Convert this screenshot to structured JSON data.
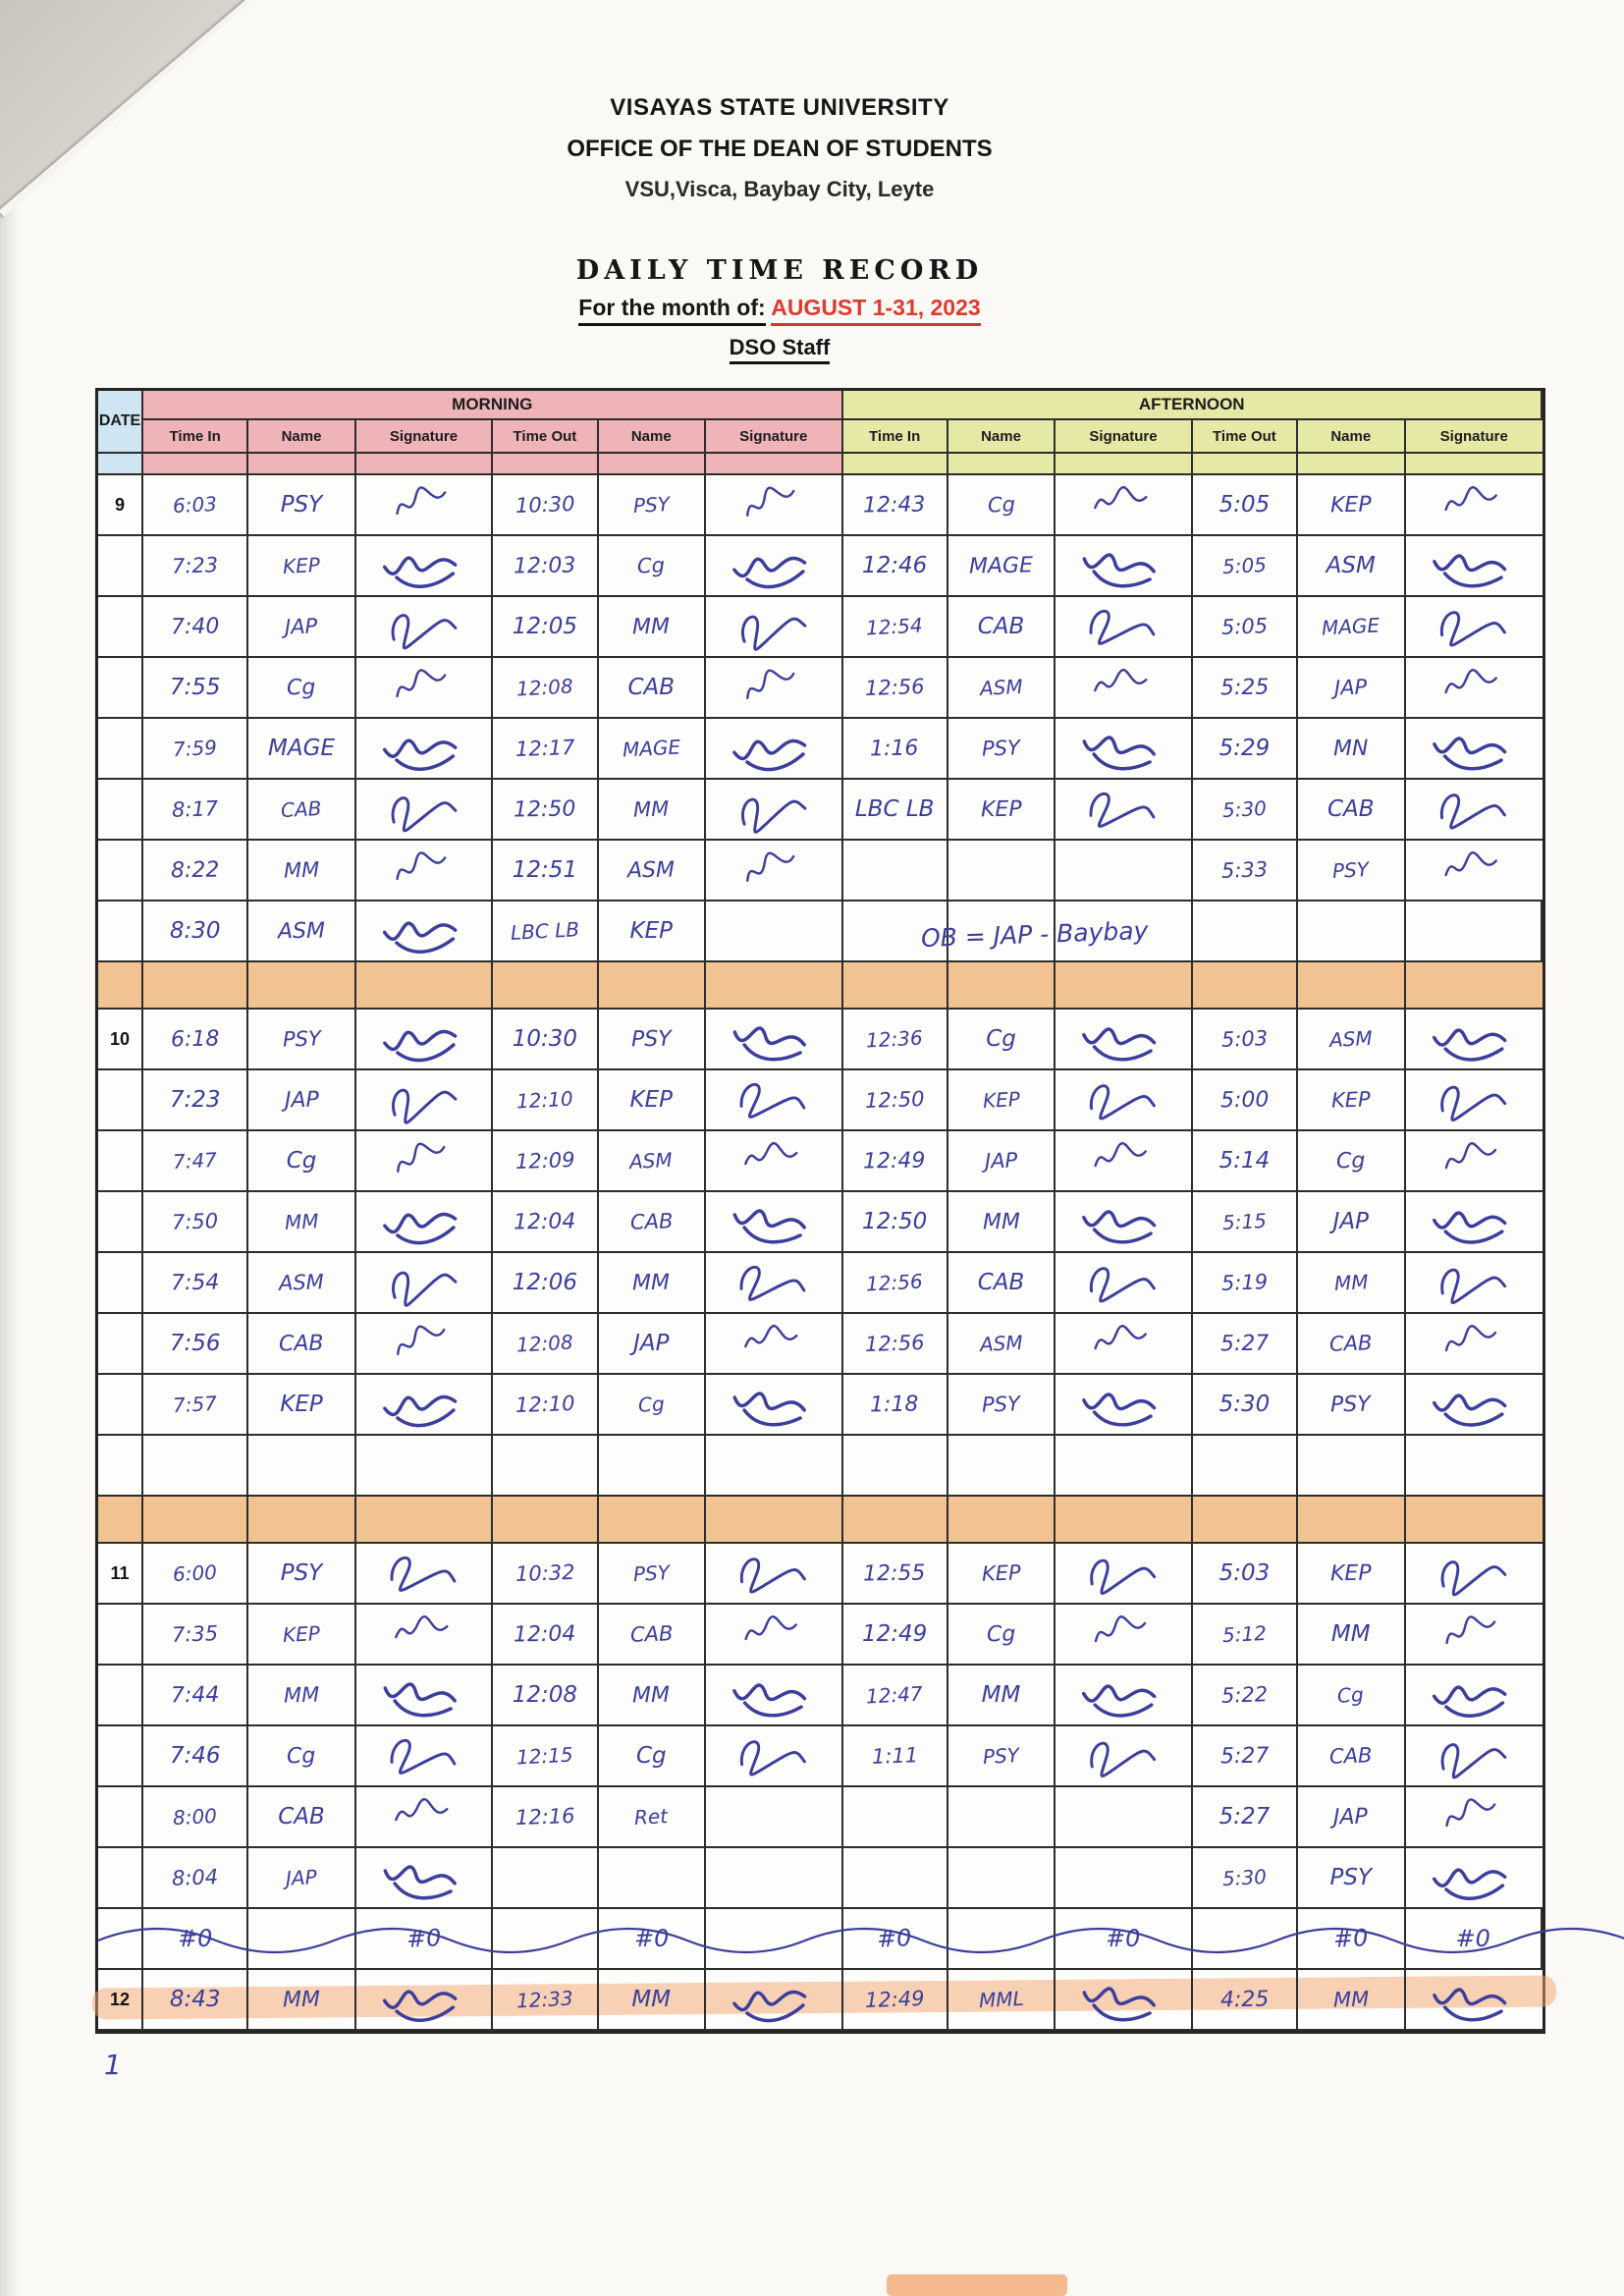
{
  "header": {
    "university": "VISAYAS STATE UNIVERSITY",
    "office": "OFFICE OF THE DEAN OF STUDENTS",
    "address": "VSU,Visca, Baybay City, Leyte",
    "title": "DAILY TIME RECORD",
    "month_prefix": "For the month of:",
    "month_value": "AUGUST 1-31, 2023",
    "staff": "DSO Staff"
  },
  "table": {
    "date_header": "DATE",
    "sections": [
      "MORNING",
      "AFTERNOON"
    ],
    "columns": [
      "Time In",
      "Name",
      "Signature",
      "Time Out",
      "Name",
      "Signature"
    ],
    "colors": {
      "date_bg": "#cfe5f1",
      "morning_bg": "#efb4b8",
      "afternoon_bg": "#e6e8a6",
      "separator_bg": "#f1c392",
      "ink": "#3c3e9c",
      "highlight": "#f3a36c",
      "red": "#de3a2f"
    },
    "blocks": [
      {
        "date": "9",
        "rows": [
          {
            "c": [
              "6:03",
              "PSY",
              "sig",
              "10:30",
              "PSY",
              "sig",
              "12:43",
              "Cg",
              "sig",
              "5:05",
              "KEP",
              "sig"
            ]
          },
          {
            "c": [
              "7:23",
              "KEP",
              "sig",
              "12:03",
              "Cg",
              "sig",
              "12:46",
              "MAGE",
              "sig",
              "5:05",
              "ASM",
              "sig"
            ]
          },
          {
            "c": [
              "7:40",
              "JAP",
              "sig",
              "12:05",
              "MM",
              "sig",
              "12:54",
              "CAB",
              "sig",
              "5:05",
              "MAGE",
              "sig"
            ]
          },
          {
            "c": [
              "7:55",
              "Cg",
              "sig",
              "12:08",
              "CAB",
              "sig",
              "12:56",
              "ASM",
              "sig",
              "5:25",
              "JAP",
              "sig"
            ]
          },
          {
            "c": [
              "7:59",
              "MAGE",
              "sig",
              "12:17",
              "MAGE",
              "sig",
              "1:16",
              "PSY",
              "sig",
              "5:29",
              "MN",
              "sig"
            ]
          },
          {
            "c": [
              "8:17",
              "CAB",
              "sig",
              "12:50",
              "MM",
              "sig",
              "LBC LB",
              "KEP",
              "sig",
              "5:30",
              "CAB",
              "sig"
            ]
          },
          {
            "c": [
              "8:22",
              "MM",
              "sig",
              "12:51",
              "ASM",
              "sig",
              "",
              "",
              "",
              "5:33",
              "PSY",
              "sig"
            ]
          },
          {
            "c": [
              "8:30",
              "ASM",
              "sig",
              "LBC LB",
              "KEP",
              "",
              "",
              "",
              "",
              "",
              "",
              ""
            ],
            "note": "OB = JAP - Baybay"
          }
        ]
      },
      {
        "type": "separator"
      },
      {
        "date": "10",
        "rows": [
          {
            "c": [
              "6:18",
              "PSY",
              "sig",
              "10:30",
              "PSY",
              "sig",
              "12:36",
              "Cg",
              "sig",
              "5:03",
              "ASM",
              "sig"
            ]
          },
          {
            "c": [
              "7:23",
              "JAP",
              "sig",
              "12:10",
              "KEP",
              "sig",
              "12:50",
              "KEP",
              "sig",
              "5:00",
              "KEP",
              "sig"
            ]
          },
          {
            "c": [
              "7:47",
              "Cg",
              "sig",
              "12:09",
              "ASM",
              "sig",
              "12:49",
              "JAP",
              "sig",
              "5:14",
              "Cg",
              "sig"
            ]
          },
          {
            "c": [
              "7:50",
              "MM",
              "sig",
              "12:04",
              "CAB",
              "sig",
              "12:50",
              "MM",
              "sig",
              "5:15",
              "JAP",
              "sig"
            ]
          },
          {
            "c": [
              "7:54",
              "ASM",
              "sig",
              "12:06",
              "MM",
              "sig",
              "12:56",
              "CAB",
              "sig",
              "5:19",
              "MM",
              "sig"
            ]
          },
          {
            "c": [
              "7:56",
              "CAB",
              "sig",
              "12:08",
              "JAP",
              "sig",
              "12:56",
              "ASM",
              "sig",
              "5:27",
              "CAB",
              "sig"
            ]
          },
          {
            "c": [
              "7:57",
              "KEP",
              "sig",
              "12:10",
              "Cg",
              "sig",
              "1:18",
              "PSY",
              "sig",
              "5:30",
              "PSY",
              "sig"
            ]
          },
          {
            "c": [
              "",
              "",
              "",
              "",
              "",
              "",
              "",
              "",
              "",
              "",
              "",
              ""
            ]
          }
        ]
      },
      {
        "type": "separator"
      },
      {
        "date": "11",
        "rows": [
          {
            "c": [
              "6:00",
              "PSY",
              "sig",
              "10:32",
              "PSY",
              "sig",
              "12:55",
              "KEP",
              "sig",
              "5:03",
              "KEP",
              "sig"
            ]
          },
          {
            "c": [
              "7:35",
              "KEP",
              "sig",
              "12:04",
              "CAB",
              "sig",
              "12:49",
              "Cg",
              "sig",
              "5:12",
              "MM",
              "sig"
            ]
          },
          {
            "c": [
              "7:44",
              "MM",
              "sig",
              "12:08",
              "MM",
              "sig",
              "12:47",
              "MM",
              "sig",
              "5:22",
              "Cg",
              "sig"
            ]
          },
          {
            "c": [
              "7:46",
              "Cg",
              "sig",
              "12:15",
              "Cg",
              "sig",
              "1:11",
              "PSY",
              "sig",
              "5:27",
              "CAB",
              "sig"
            ]
          },
          {
            "c": [
              "8:00",
              "CAB",
              "sig",
              "12:16",
              "Ret",
              "",
              "",
              "",
              "",
              "5:27",
              "JAP",
              "sig"
            ]
          },
          {
            "c": [
              "8:04",
              "JAP",
              "sig",
              "",
              "",
              "",
              "",
              "",
              "",
              "5:30",
              "PSY",
              "sig"
            ]
          },
          {
            "c": [
              "#0",
              "",
              "#0",
              "",
              "#0",
              "",
              "#0",
              "",
              "#0",
              "",
              "#0",
              "#0"
            ],
            "crossout": true
          }
        ]
      },
      {
        "date": "12",
        "rows": [
          {
            "c": [
              "8:43",
              "MM",
              "sig",
              "12:33",
              "MM",
              "sig",
              "12:49",
              "MML",
              "sig",
              "4:25",
              "MM",
              "sig"
            ],
            "highlight": true
          }
        ]
      }
    ],
    "stray_mark": "1"
  }
}
